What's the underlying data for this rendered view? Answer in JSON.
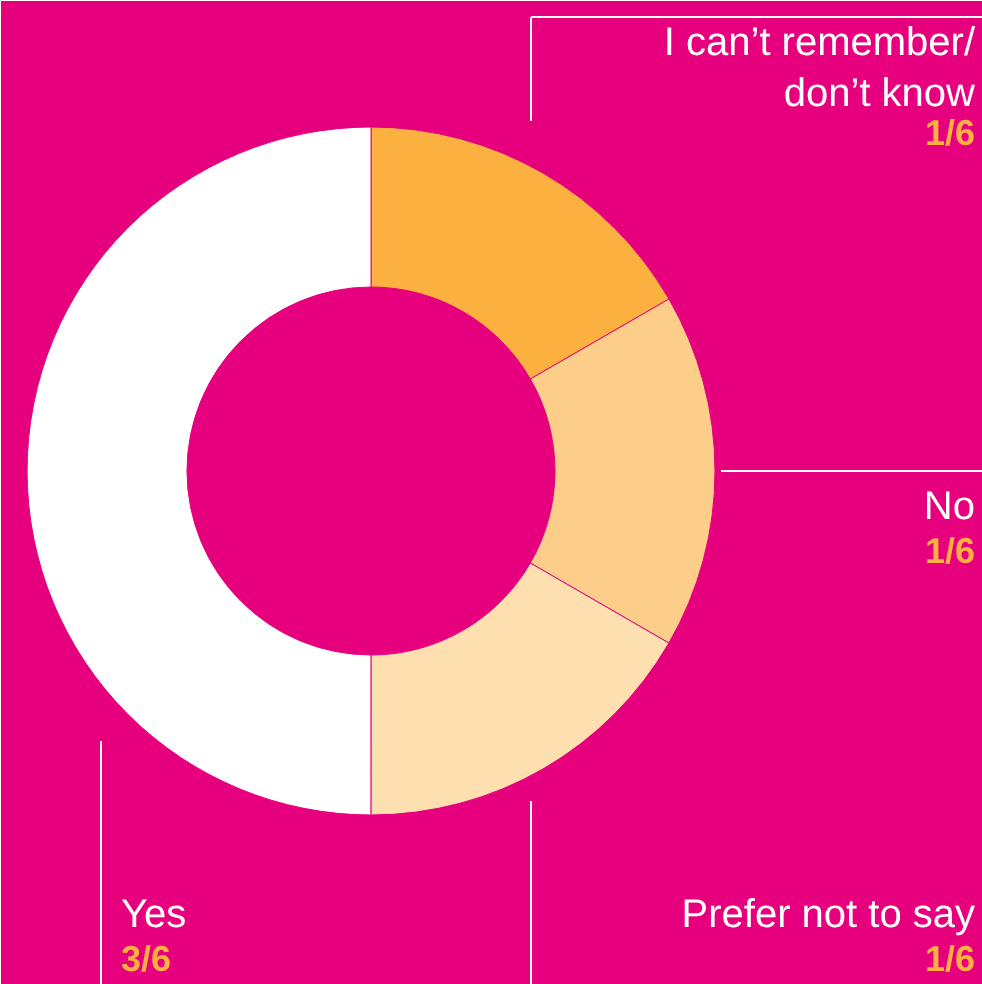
{
  "chart_data": {
    "type": "donut",
    "categories": [
      "I can’t remember/don’t know",
      "No",
      "Prefer not to say",
      "Yes"
    ],
    "values": [
      0.1667,
      0.1667,
      0.1667,
      0.5
    ],
    "value_labels": [
      "1/6",
      "1/6",
      "1/6",
      "3/6"
    ],
    "colors": [
      "#fbb040",
      "#fdce8a",
      "#fedfb0",
      "#ffffff"
    ]
  }
}
